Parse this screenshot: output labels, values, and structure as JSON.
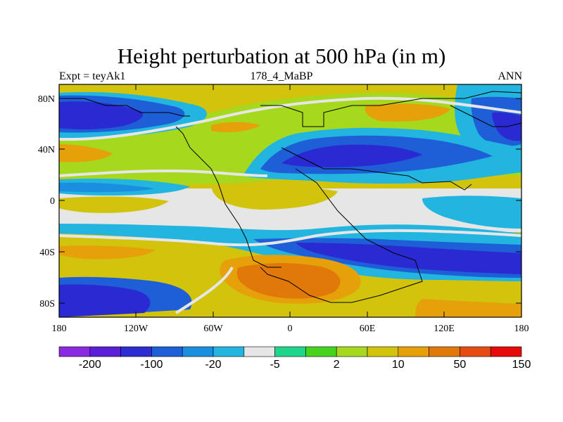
{
  "title": "Height perturbation at 500 hPa (in m)",
  "subtitle_left": "Expt = teyAk1",
  "subtitle_center": "178_4_MaBP",
  "subtitle_right": "ANN",
  "y_ticks": [
    "80N",
    "40N",
    "0",
    "40S",
    "80S"
  ],
  "x_ticks": [
    "180",
    "120W",
    "60W",
    "0",
    "60E",
    "120E",
    "180"
  ],
  "colorbar": {
    "colors": [
      "#8a2be2",
      "#5a1fd6",
      "#2d2dd2",
      "#1e5fd8",
      "#1a8fe0",
      "#22b5e0",
      "#e6e6e6",
      "#1ed68a",
      "#46d21e",
      "#a6d81e",
      "#d2c30c",
      "#e6a00a",
      "#e0780a",
      "#e64b14",
      "#e60a0a"
    ],
    "labels": [
      "-200",
      "-100",
      "-20",
      "-5",
      "2",
      "10",
      "50",
      "150"
    ]
  },
  "map_colors": {
    "deep_blue": "#2a2ad2",
    "blue": "#1e5fd8",
    "light_blue": "#1a8fe0",
    "cyan": "#22b5e0",
    "white": "#e6e6e6",
    "green": "#46d21e",
    "yellow_green": "#a6d81e",
    "yellow": "#d2c30c",
    "orange": "#e6a00a",
    "dark_orange": "#e0780a",
    "red_orange": "#e64b14"
  }
}
